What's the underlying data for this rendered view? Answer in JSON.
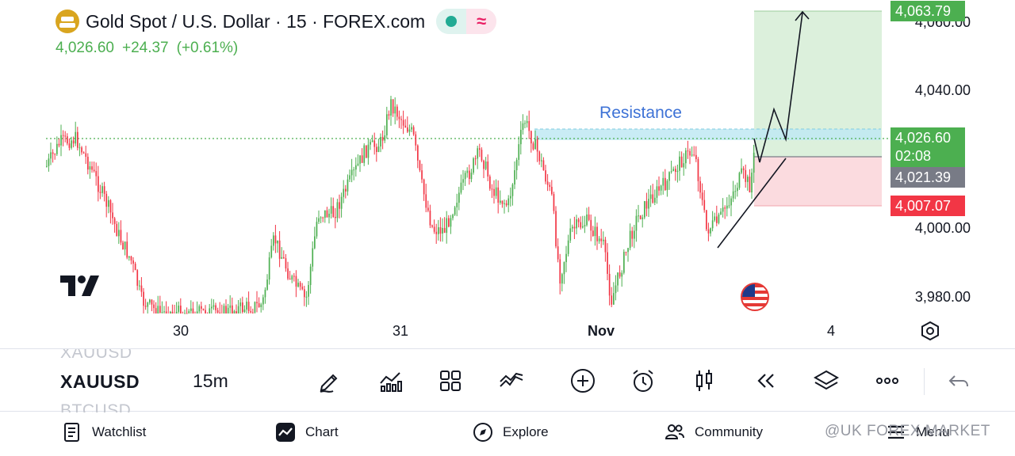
{
  "header": {
    "title": "Gold Spot / U.S. Dollar · 15 · FOREX.com",
    "last_price": "4,026.60",
    "change": "+24.37",
    "change_pct": "(+0.61%)"
  },
  "chart": {
    "annotation": "Resistance",
    "price_axis": [
      "4,060.00",
      "4,040.00",
      "4,000.00",
      "3,980.00"
    ],
    "time_axis": [
      "30",
      "31",
      "Nov",
      "4"
    ],
    "tags": {
      "target": "4,063.79",
      "last": "4,026.60",
      "countdown": "02:08",
      "entry": "4,021.39",
      "stop": "4,007.07"
    },
    "colors": {
      "up": "#4caf50",
      "down": "#f23645",
      "target_zone": "#d8eed8",
      "stop_zone": "#fbd9dd",
      "resistance_zone": "#bfe9f3",
      "entry_tag": "#787b86"
    }
  },
  "toolbar": {
    "symbol_prev": "XAUUSD",
    "symbol": "XAUUSD",
    "symbol_next": "BTCUSD",
    "interval": "15m",
    "tools": [
      "pencil-icon",
      "indicators-icon",
      "layouts-icon",
      "compare-icon",
      "add-icon",
      "alert-icon",
      "candle-type-icon",
      "replay-icon",
      "layers-icon",
      "more-icon",
      "undo-icon"
    ]
  },
  "nav": {
    "watchlist": "Watchlist",
    "chart": "Chart",
    "explore": "Explore",
    "community": "Community",
    "menu": "Menu"
  },
  "watermark": "@UK FOREX MARKET"
}
